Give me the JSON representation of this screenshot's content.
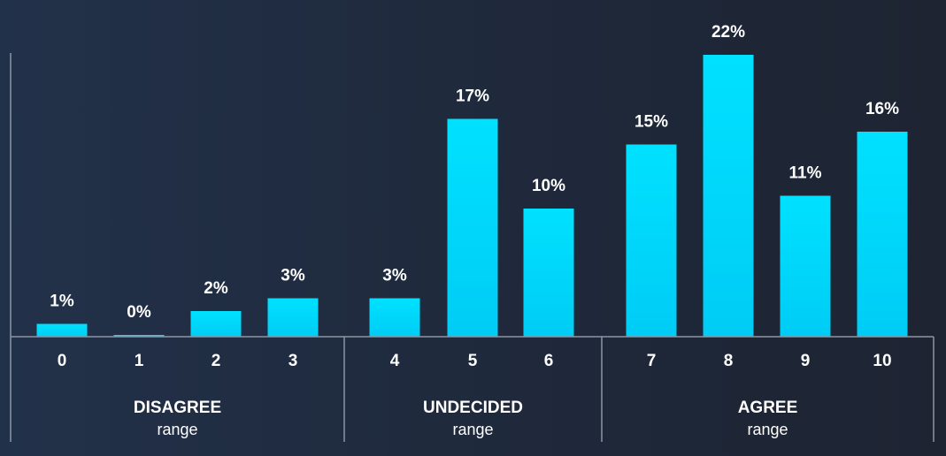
{
  "chart_data": {
    "type": "bar",
    "categories": [
      "0",
      "1",
      "2",
      "3",
      "4",
      "5",
      "6",
      "7",
      "8",
      "9",
      "10"
    ],
    "values": [
      1,
      0,
      2,
      3,
      3,
      17,
      10,
      15,
      22,
      11,
      16
    ],
    "value_labels": [
      "1%",
      "0%",
      "2%",
      "3%",
      "3%",
      "17%",
      "10%",
      "15%",
      "22%",
      "11%",
      "16%"
    ],
    "groups": [
      {
        "title": "DISAGREE",
        "subtitle": "range",
        "categories": [
          "0",
          "1",
          "2",
          "3"
        ]
      },
      {
        "title": "UNDECIDED",
        "subtitle": "range",
        "categories": [
          "4",
          "5",
          "6"
        ]
      },
      {
        "title": "AGREE",
        "subtitle": "range",
        "categories": [
          "7",
          "8",
          "9",
          "10"
        ]
      }
    ],
    "ylim": [
      0,
      25
    ],
    "grid": false,
    "colors": {
      "bar_top": "#00e1ff",
      "bar_bottom": "#00ccf5",
      "text": "#ffffff",
      "axis": "#8d95a3"
    }
  }
}
